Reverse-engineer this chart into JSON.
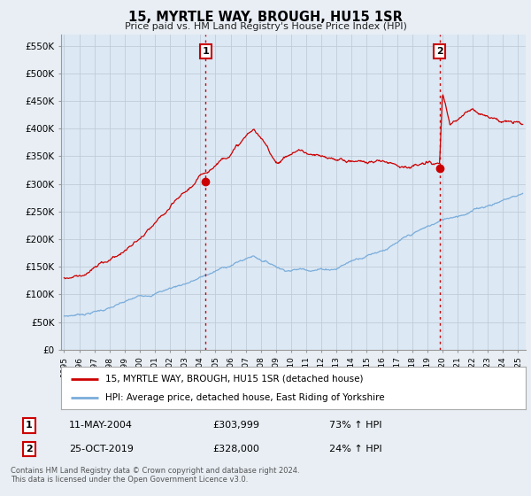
{
  "title": "15, MYRTLE WAY, BROUGH, HU15 1SR",
  "subtitle": "Price paid vs. HM Land Registry's House Price Index (HPI)",
  "ylabel_ticks": [
    "£0",
    "£50K",
    "£100K",
    "£150K",
    "£200K",
    "£250K",
    "£300K",
    "£350K",
    "£400K",
    "£450K",
    "£500K",
    "£550K"
  ],
  "ytick_values": [
    0,
    50000,
    100000,
    150000,
    200000,
    250000,
    300000,
    350000,
    400000,
    450000,
    500000,
    550000
  ],
  "ylim": [
    0,
    570000
  ],
  "xlim_start": 1994.8,
  "xlim_end": 2025.5,
  "transaction1_x": 2004.36,
  "transaction1_y": 303999,
  "transaction1_label": "1",
  "transaction1_date": "11-MAY-2004",
  "transaction1_price": "£303,999",
  "transaction1_hpi": "73% ↑ HPI",
  "transaction2_x": 2019.81,
  "transaction2_y": 328000,
  "transaction2_label": "2",
  "transaction2_date": "25-OCT-2019",
  "transaction2_price": "£328,000",
  "transaction2_hpi": "24% ↑ HPI",
  "line1_color": "#cc0000",
  "line2_color": "#7aaddb",
  "vline_color": "#cc0000",
  "vline_style": ":",
  "legend_label1": "15, MYRTLE WAY, BROUGH, HU15 1SR (detached house)",
  "legend_label2": "HPI: Average price, detached house, East Riding of Yorkshire",
  "footer1": "Contains HM Land Registry data © Crown copyright and database right 2024.",
  "footer2": "This data is licensed under the Open Government Licence v3.0.",
  "background_color": "#e8eef4",
  "plot_bg_color": "#dce8f4",
  "grid_color": "#c0cdd8"
}
